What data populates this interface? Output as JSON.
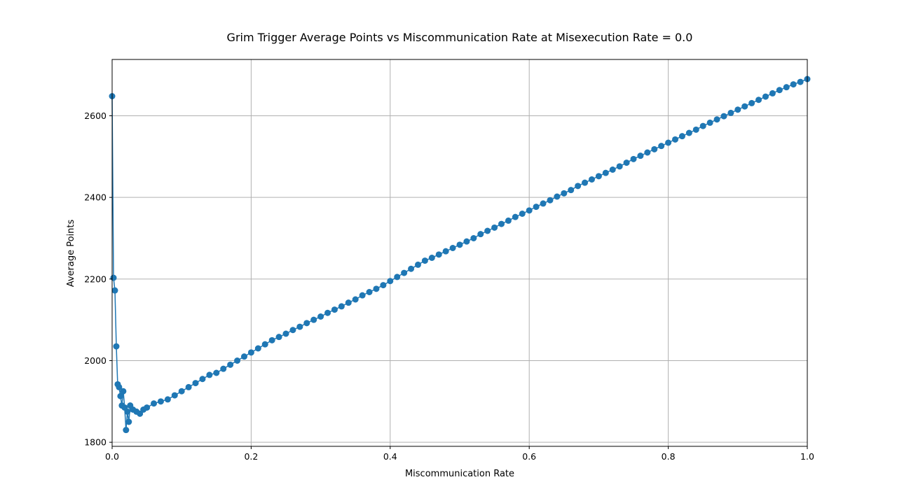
{
  "chart_data": {
    "type": "line",
    "title": "Grim Trigger Average Points vs Miscommunication Rate at Misexecution Rate = 0.0",
    "xlabel": "Miscommunication Rate",
    "ylabel": "Average Points",
    "xlim": [
      0.0,
      1.0
    ],
    "ylim": [
      1790,
      2738
    ],
    "xticks": [
      "0.0",
      "0.2",
      "0.4",
      "0.6",
      "0.8",
      "1.0"
    ],
    "yticks": [
      "1800",
      "2000",
      "2200",
      "2400",
      "2600"
    ],
    "grid": true,
    "marker": "circle",
    "color": "#1f77b4",
    "series": [
      {
        "x": [
          0.0,
          0.002,
          0.004,
          0.006,
          0.008,
          0.01,
          0.012,
          0.014,
          0.016,
          0.018,
          0.02,
          0.022,
          0.024,
          0.026,
          0.03,
          0.035,
          0.04,
          0.045,
          0.05,
          0.06,
          0.07,
          0.08,
          0.09,
          0.1,
          0.11,
          0.12,
          0.13,
          0.14,
          0.15,
          0.16,
          0.17,
          0.18,
          0.19,
          0.2,
          0.21,
          0.22,
          0.23,
          0.24,
          0.25,
          0.26,
          0.27,
          0.28,
          0.29,
          0.3,
          0.31,
          0.32,
          0.33,
          0.34,
          0.35,
          0.36,
          0.37,
          0.38,
          0.39,
          0.4,
          0.41,
          0.42,
          0.43,
          0.44,
          0.45,
          0.46,
          0.47,
          0.48,
          0.49,
          0.5,
          0.51,
          0.52,
          0.53,
          0.54,
          0.55,
          0.56,
          0.57,
          0.58,
          0.59,
          0.6,
          0.61,
          0.62,
          0.63,
          0.64,
          0.65,
          0.66,
          0.67,
          0.68,
          0.69,
          0.7,
          0.71,
          0.72,
          0.73,
          0.74,
          0.75,
          0.76,
          0.77,
          0.78,
          0.79,
          0.8,
          0.81,
          0.82,
          0.83,
          0.84,
          0.85,
          0.86,
          0.87,
          0.88,
          0.89,
          0.9,
          0.91,
          0.92,
          0.93,
          0.94,
          0.95,
          0.96,
          0.97,
          0.98,
          0.99,
          1.0
        ],
        "y": [
          2648,
          2203,
          2172,
          2035,
          1942,
          1935,
          1913,
          1890,
          1925,
          1885,
          1830,
          1875,
          1850,
          1890,
          1880,
          1875,
          1870,
          1880,
          1885,
          1895,
          1900,
          1905,
          1915,
          1925,
          1935,
          1945,
          1955,
          1965,
          1970,
          1980,
          1990,
          2000,
          2010,
          2020,
          2030,
          2040,
          2050,
          2058,
          2066,
          2075,
          2083,
          2092,
          2100,
          2108,
          2117,
          2125,
          2133,
          2142,
          2150,
          2160,
          2168,
          2176,
          2185,
          2195,
          2205,
          2215,
          2225,
          2235,
          2245,
          2252,
          2260,
          2268,
          2276,
          2284,
          2292,
          2300,
          2310,
          2318,
          2326,
          2335,
          2343,
          2352,
          2360,
          2368,
          2377,
          2385,
          2393,
          2402,
          2410,
          2418,
          2428,
          2436,
          2444,
          2452,
          2460,
          2468,
          2476,
          2485,
          2494,
          2502,
          2510,
          2518,
          2526,
          2534,
          2542,
          2550,
          2558,
          2566,
          2575,
          2583,
          2591,
          2599,
          2607,
          2615,
          2623,
          2631,
          2639,
          2647,
          2655,
          2663,
          2670,
          2677,
          2683,
          2690
        ]
      }
    ]
  }
}
